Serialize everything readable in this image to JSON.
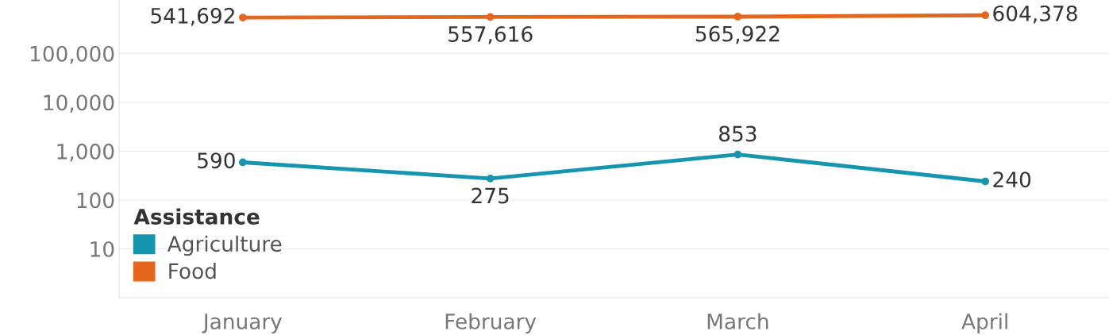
{
  "chart_data": {
    "type": "line",
    "categories": [
      "January",
      "February",
      "March",
      "April"
    ],
    "series": [
      {
        "name": "Agriculture",
        "color": "#1696ae",
        "values": [
          590,
          275,
          853,
          240
        ],
        "value_labels": [
          "590",
          "275",
          "853",
          "240"
        ]
      },
      {
        "name": "Food",
        "color": "#e5671e",
        "values": [
          541692,
          557616,
          565922,
          604378
        ],
        "value_labels": [
          "541,692",
          "557,616",
          "565,922",
          "604,378"
        ]
      }
    ],
    "log": true,
    "ylim": [
      1,
      1240000
    ],
    "yticks": [
      {
        "value": 10,
        "label": "10"
      },
      {
        "value": 100,
        "label": "100"
      },
      {
        "value": 1000,
        "label": "1,000"
      },
      {
        "value": 10000,
        "label": "10,000"
      },
      {
        "value": 100000,
        "label": "100,000"
      }
    ],
    "grid": "y",
    "legend": "bottom left",
    "legend_title": "Assistance",
    "marker": "circle",
    "line_style": "solid"
  }
}
